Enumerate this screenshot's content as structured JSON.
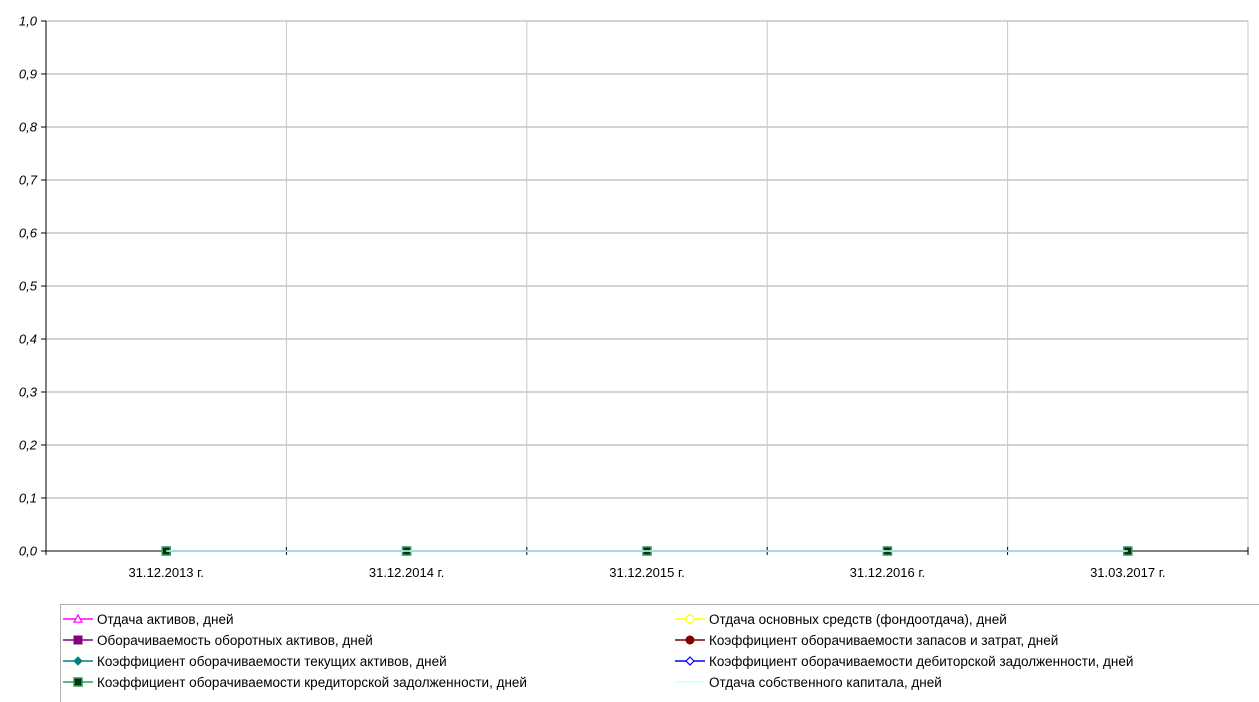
{
  "chart_data": {
    "type": "line",
    "title": "",
    "xlabel": "",
    "ylabel": "",
    "categories": [
      "31.12.2013 г.",
      "31.12.2014 г.",
      "31.12.2015 г.",
      "31.12.2016 г.",
      "31.03.2017 г."
    ],
    "ylim": [
      0,
      1
    ],
    "yticks": [
      "0,0",
      "0,1",
      "0,2",
      "0,3",
      "0,4",
      "0,5",
      "0,6",
      "0,7",
      "0,8",
      "0,9",
      "1,0"
    ],
    "grid": true,
    "legend_position": "bottom",
    "series": [
      {
        "name": "Отдача активов, дней",
        "values": [
          0,
          0,
          0,
          0,
          0
        ],
        "color": "#ff00ff",
        "marker": "triangle-open"
      },
      {
        "name": "Отдача основных средств (фондоотдача), дней",
        "values": [
          0,
          0,
          0,
          0,
          0
        ],
        "color": "#ffff00",
        "marker": "circle-open"
      },
      {
        "name": "Оборачиваемость оборотных активов, дней",
        "values": [
          0,
          0,
          0,
          0,
          0
        ],
        "color": "#800080",
        "marker": "square"
      },
      {
        "name": "Коэффициент оборачиваемости запасов и затрат, дней",
        "values": [
          0,
          0,
          0,
          0,
          0
        ],
        "color": "#800000",
        "marker": "circle"
      },
      {
        "name": "Коэффициент оборачиваемости текущих активов, дней",
        "values": [
          0,
          0,
          0,
          0,
          0
        ],
        "color": "#008080",
        "marker": "diamond"
      },
      {
        "name": "Коэффициент оборачиваемости дебиторской задолженности, дней",
        "values": [
          0,
          0,
          0,
          0,
          0
        ],
        "color": "#0000ff",
        "marker": "diamond-open"
      },
      {
        "name": "Коэффициент оборачиваемости кредиторской задолженности, дней",
        "values": [
          0,
          0,
          0,
          0,
          0
        ],
        "color": "#339966",
        "marker": "square-dark"
      },
      {
        "name": "Отдача собственного капитала, дней",
        "values": [
          0,
          0,
          0,
          0,
          0
        ],
        "color": "#ccffff",
        "marker": "none"
      }
    ]
  }
}
